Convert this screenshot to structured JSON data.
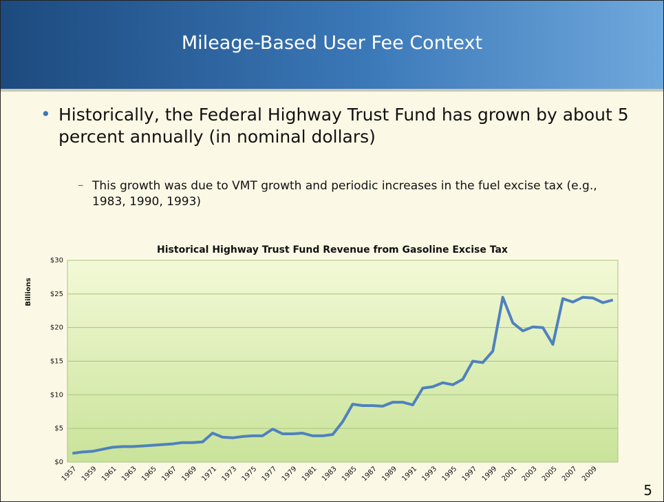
{
  "title": "Mileage-Based User Fee Context",
  "bullet": "Historically, the Federal Highway Trust Fund has grown by about 5 percent annually (in nominal dollars)",
  "sub_bullet": "This growth was due to VMT growth and periodic increases in the fuel excise tax (e.g., 1983, 1990, 1993)",
  "slide_number": "5",
  "chart_data": {
    "type": "line",
    "title": "Historical Highway Trust Fund Revenue from Gasoline Excise Tax",
    "y_label": "Billions",
    "categories": [
      "1957",
      null,
      "1959",
      null,
      "1961",
      null,
      "1963",
      null,
      "1965",
      null,
      "1967",
      null,
      "1969",
      null,
      "1971",
      null,
      "1973",
      null,
      "1975",
      null,
      "1977",
      null,
      "1979",
      null,
      "1981",
      null,
      "1983",
      null,
      "1985",
      null,
      "1987",
      null,
      "1989",
      null,
      "1991",
      null,
      "1993",
      null,
      "1995",
      null,
      "1997",
      null,
      "1999",
      null,
      "2001",
      null,
      "2003",
      null,
      "2005",
      null,
      "2007",
      null,
      "2009",
      null,
      null
    ],
    "series": [
      {
        "name": "Revenue",
        "color": "#4f81bd",
        "values": [
          1.3,
          1.5,
          1.6,
          1.9,
          2.2,
          2.3,
          2.3,
          2.4,
          2.5,
          2.6,
          2.7,
          2.9,
          2.9,
          3.0,
          4.3,
          3.7,
          3.6,
          3.8,
          3.9,
          3.9,
          4.9,
          4.2,
          4.2,
          4.3,
          3.9,
          3.9,
          4.1,
          6.0,
          8.6,
          8.4,
          8.4,
          8.3,
          8.9,
          8.9,
          8.5,
          11.0,
          11.2,
          11.8,
          11.5,
          12.3,
          15.0,
          14.8,
          16.5,
          24.5,
          20.7,
          19.5,
          20.1,
          20.0,
          17.5,
          24.3,
          23.8,
          24.5,
          24.4,
          23.7,
          24.1
        ]
      }
    ],
    "ylim": [
      0,
      30
    ],
    "yticks": [
      {
        "value": 0,
        "label": "$0"
      },
      {
        "value": 5,
        "label": "$5"
      },
      {
        "value": 10,
        "label": "$10"
      },
      {
        "value": 15,
        "label": "$15"
      },
      {
        "value": 20,
        "label": "$20"
      },
      {
        "value": 25,
        "label": "$25"
      },
      {
        "value": 30,
        "label": "$30"
      }
    ],
    "grid": true
  }
}
